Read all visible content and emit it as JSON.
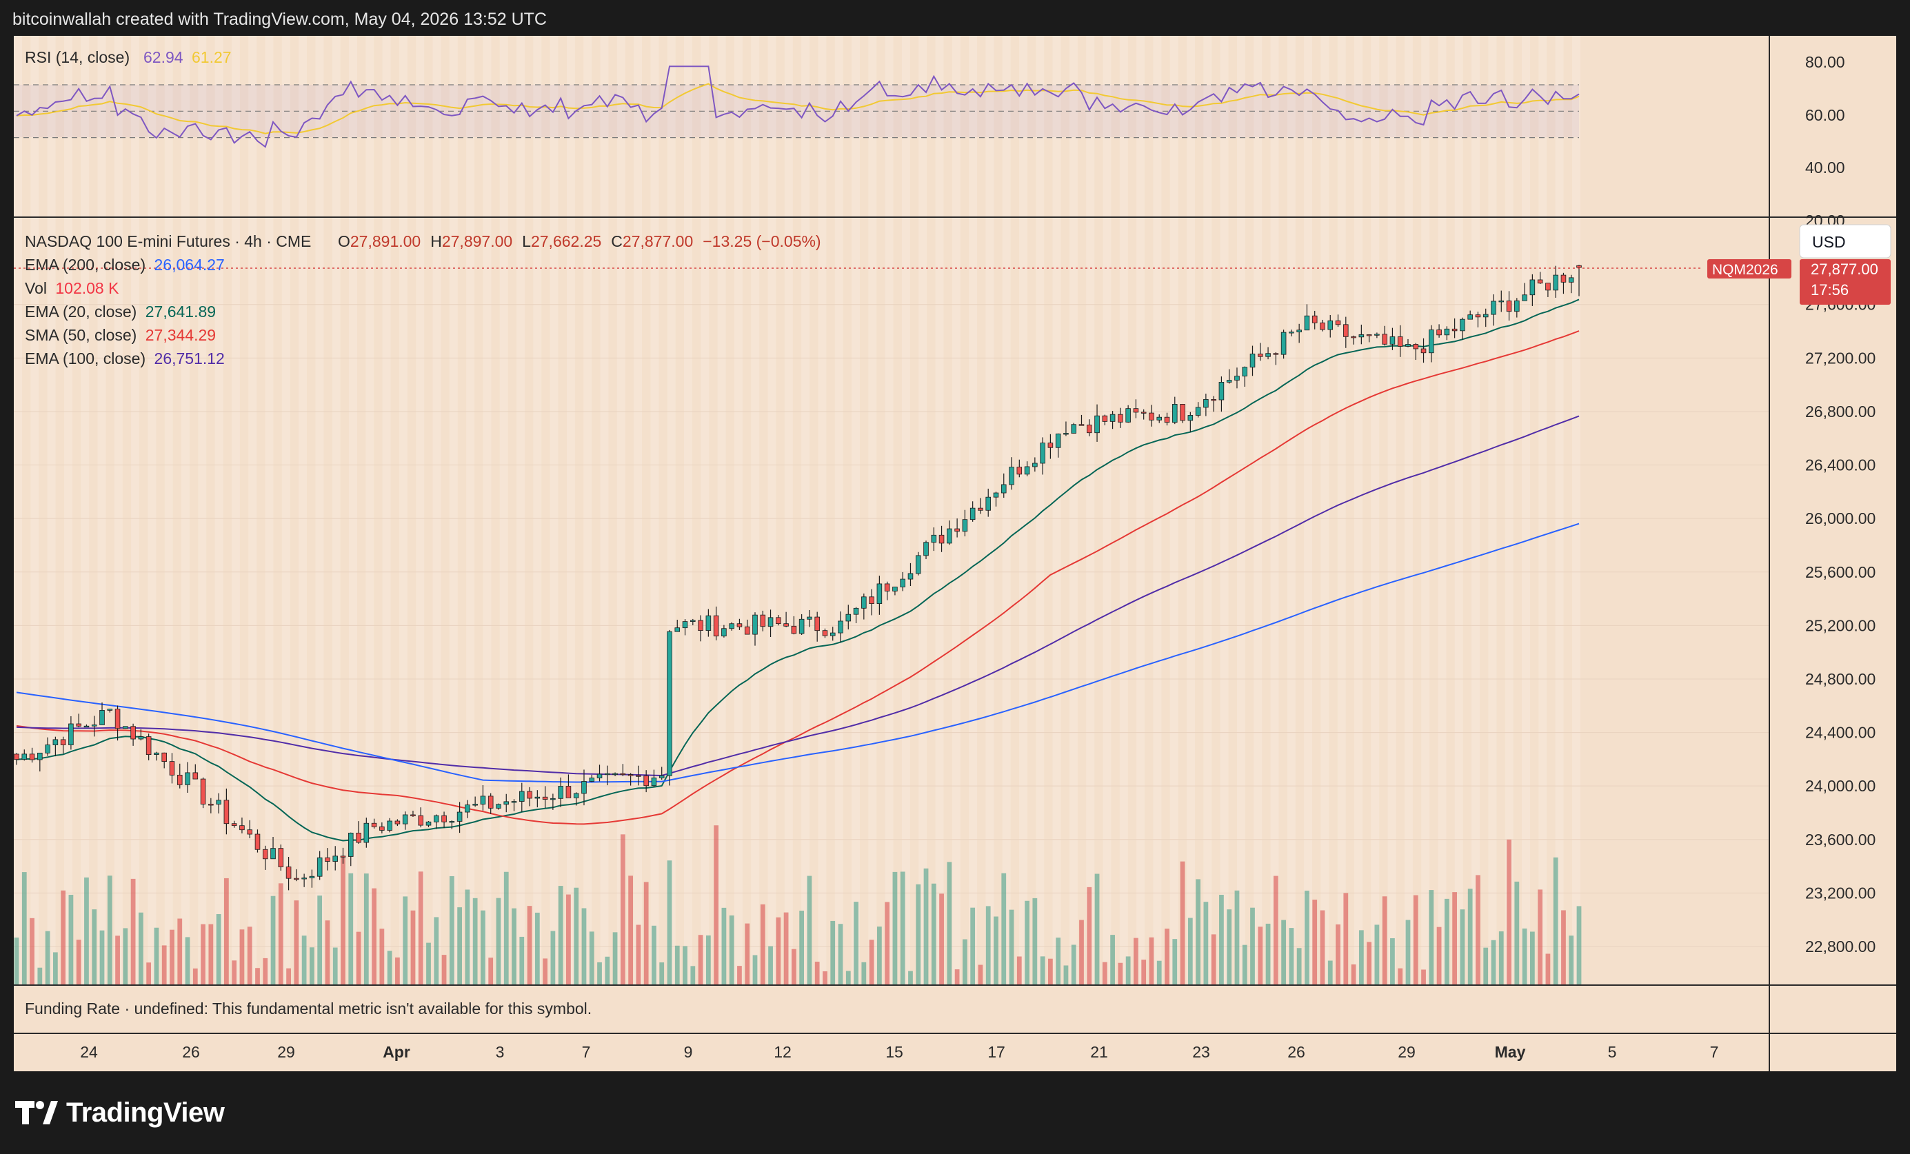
{
  "header": {
    "text": "bitcoinwallah created with TradingView.com, May 04, 2026 13:52 UTC"
  },
  "rsi_pane": {
    "title": "RSI (14, close)",
    "value": "62.94",
    "ma_value": "61.27",
    "levels": [
      "80.00",
      "60.00",
      "40.00",
      "20.00"
    ]
  },
  "main_pane": {
    "symbol": "NASDAQ 100 E-mini Futures · 4h · CME",
    "ohlc": {
      "o_label": "O",
      "o": "27,891.00",
      "h_label": "H",
      "h": "27,897.00",
      "l_label": "L",
      "l": "27,662.25",
      "c_label": "C",
      "c": "27,877.00",
      "change": "−13.25 (−0.05%)"
    },
    "indicators": [
      {
        "label": "EMA (200, close)",
        "value": "26,064.27",
        "color": "#2962ff"
      },
      {
        "label": "Vol",
        "value": "102.08 K",
        "color": "#f23645"
      },
      {
        "label": "EMA (20, close)",
        "value": "27,641.89",
        "color": "#056656"
      },
      {
        "label": "SMA (50, close)",
        "value": "27,344.29",
        "color": "#e53935"
      },
      {
        "label": "EMA (100, close)",
        "value": "26,751.12",
        "color": "#512da8"
      }
    ],
    "currency": "USD",
    "price_tag": {
      "symbol": "NQM2026",
      "price": "27,877.00",
      "countdown": "17:56"
    },
    "price_axis": [
      "27,600.00",
      "27,200.00",
      "26,800.00",
      "26,400.00",
      "26,000.00",
      "25,600.00",
      "25,200.00",
      "24,800.00",
      "24,400.00",
      "24,000.00",
      "23,600.00",
      "23,200.00",
      "22,800.00"
    ]
  },
  "funding_pane": {
    "text": "Funding Rate · undefined: This fundamental metric isn't available for this symbol."
  },
  "time_axis": [
    "24",
    "26",
    "29",
    "Apr",
    "3",
    "7",
    "9",
    "12",
    "15",
    "17",
    "21",
    "23",
    "26",
    "29",
    "May",
    "5",
    "7"
  ],
  "brand": {
    "name": "TradingView"
  },
  "colors": {
    "up": "#3a9a85",
    "down": "#d74545",
    "rsi": "#7e57c2",
    "rsi_ma": "#f2c933"
  },
  "chart_data": {
    "type": "candlestick",
    "title": "NASDAQ 100 E-mini Futures · 4h · CME",
    "timeframe": "4h",
    "ylim": [
      22800,
      28000
    ],
    "key_points": [
      {
        "x": "Mar 23",
        "price": 24200
      },
      {
        "x": "Mar 24",
        "price": 24550
      },
      {
        "x": "Mar 30",
        "price": 23300
      },
      {
        "x": "Apr 1",
        "price": 23700
      },
      {
        "x": "Apr 7",
        "price": 24100
      },
      {
        "x": "Apr 8",
        "price": 25200
      },
      {
        "x": "Apr 13",
        "price": 25200
      },
      {
        "x": "Apr 17",
        "price": 26700
      },
      {
        "x": "Apr 22",
        "price": 26800
      },
      {
        "x": "Apr 26",
        "price": 27450
      },
      {
        "x": "Apr 29",
        "price": 27250
      },
      {
        "x": "May 4",
        "price": 27877
      }
    ],
    "series": [
      {
        "name": "EMA (200, close)",
        "last": 26064.27
      },
      {
        "name": "SMA (50, close)",
        "last": 27344.29
      },
      {
        "name": "EMA (20, close)",
        "last": 27641.89
      },
      {
        "name": "EMA (100, close)",
        "last": 26751.12
      }
    ],
    "last_bar": {
      "open": 27891.0,
      "high": 27897.0,
      "low": 27662.25,
      "close": 27877.0
    },
    "volume_last": "102.08 K",
    "rsi": {
      "value": 62.94,
      "ma": 61.27,
      "ylim": [
        20,
        85
      ]
    }
  }
}
